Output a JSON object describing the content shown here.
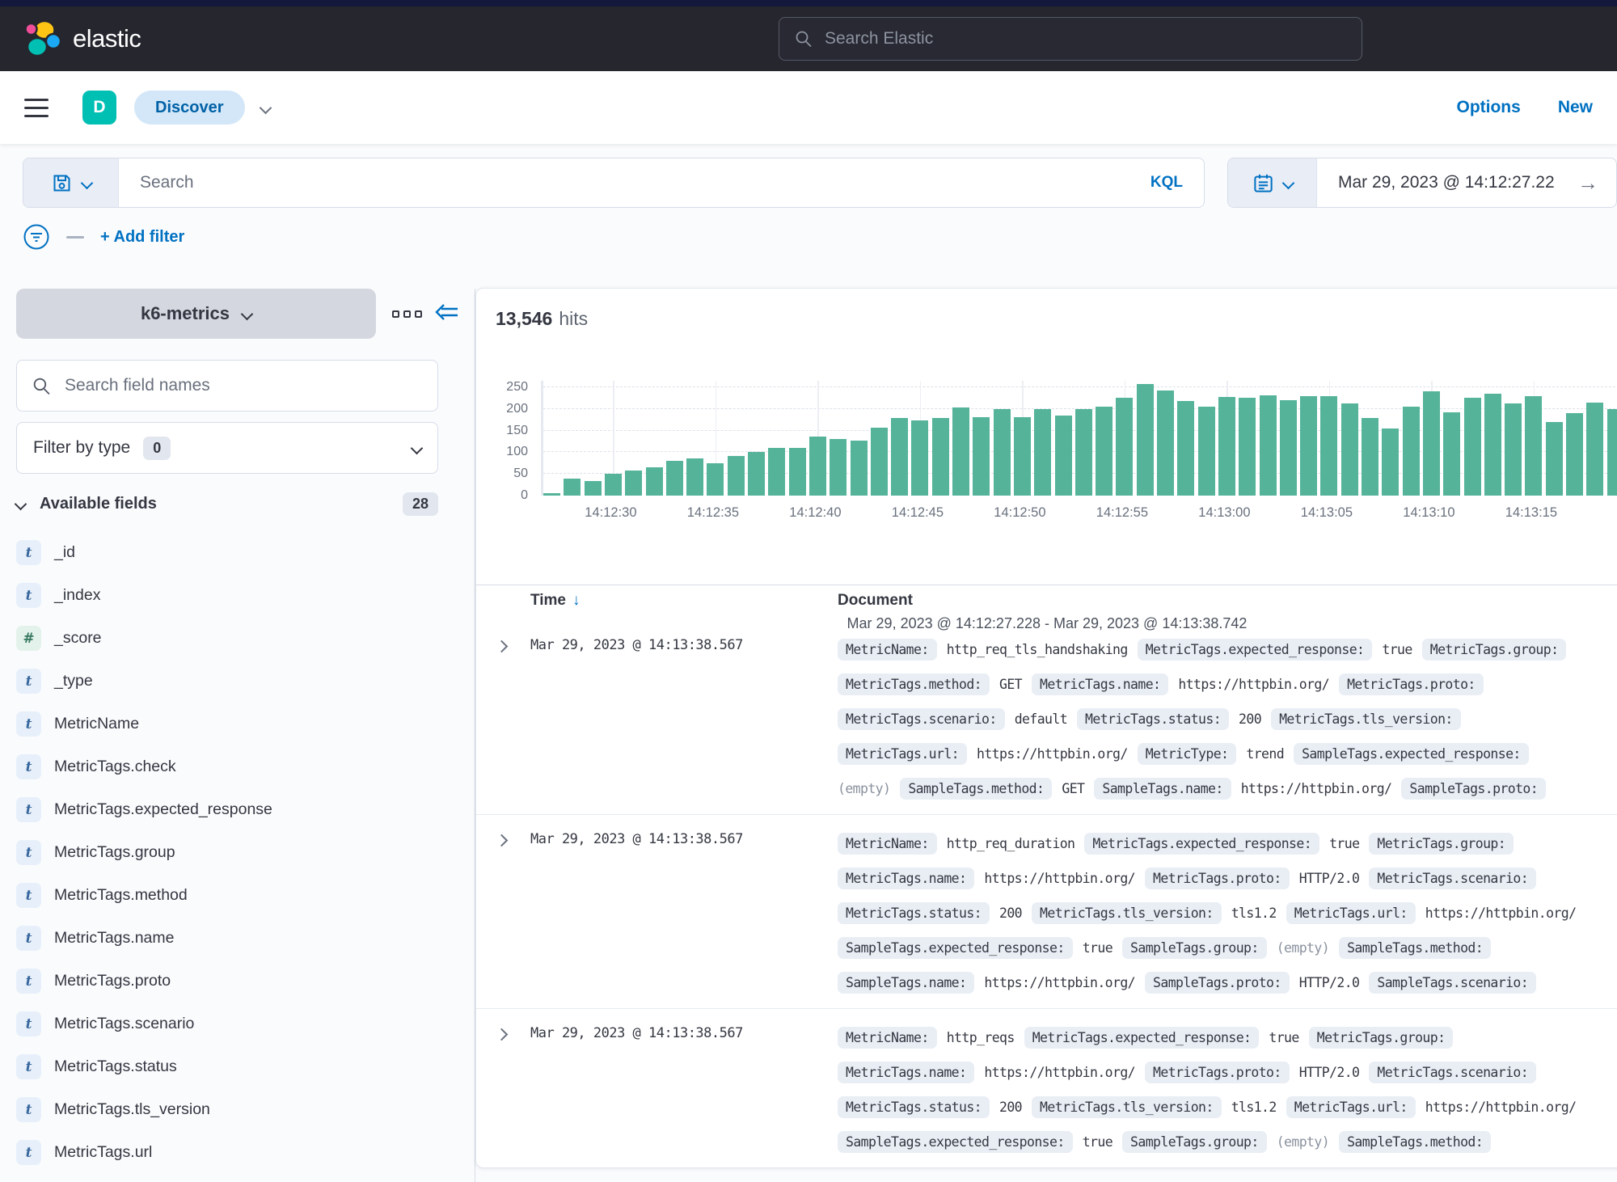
{
  "colors": {
    "accent": "#0071c2",
    "bar": "#54b399",
    "badge_teal": "#00bfb3",
    "header_bg": "#25262e"
  },
  "header": {
    "logo_text": "elastic",
    "search_placeholder": "Search Elastic"
  },
  "nav": {
    "app_initial": "D",
    "breadcrumb": "Discover",
    "options_label": "Options",
    "new_label": "New"
  },
  "query_bar": {
    "search_placeholder": "Search",
    "kql_label": "KQL",
    "date_value": "Mar 29, 2023 @ 14:12:27.22",
    "go_arrow": "→",
    "add_filter_label": "+ Add filter"
  },
  "sidebar": {
    "data_view": "k6-metrics",
    "field_search_placeholder": "Search field names",
    "filter_by_type_label": "Filter by type",
    "filter_by_type_count": "0",
    "available_fields_label": "Available fields",
    "available_fields_count": "28",
    "fields": [
      {
        "type": "t",
        "name": "_id"
      },
      {
        "type": "t",
        "name": "_index"
      },
      {
        "type": "n",
        "name": "_score"
      },
      {
        "type": "t",
        "name": "_type"
      },
      {
        "type": "t",
        "name": "MetricName"
      },
      {
        "type": "t",
        "name": "MetricTags.check"
      },
      {
        "type": "t",
        "name": "MetricTags.expected_response"
      },
      {
        "type": "t",
        "name": "MetricTags.group"
      },
      {
        "type": "t",
        "name": "MetricTags.method"
      },
      {
        "type": "t",
        "name": "MetricTags.name"
      },
      {
        "type": "t",
        "name": "MetricTags.proto"
      },
      {
        "type": "t",
        "name": "MetricTags.scenario"
      },
      {
        "type": "t",
        "name": "MetricTags.status"
      },
      {
        "type": "t",
        "name": "MetricTags.tls_version"
      },
      {
        "type": "t",
        "name": "MetricTags.url"
      }
    ],
    "type_icon_t": "t",
    "type_icon_n": "#"
  },
  "main": {
    "hits_count": "13,546",
    "hits_label": "hits",
    "time_range": "Mar 29, 2023 @ 14:12:27.228 - Mar 29, 2023 @ 14:13:38.742",
    "table": {
      "time_header": "Time",
      "sort_icon": "↓",
      "document_header": "Document",
      "rows": [
        {
          "time": "Mar 29, 2023 @ 14:13:38.567",
          "lines": [
            [
              [
                "k",
                "MetricName:"
              ],
              [
                "v",
                "http_req_tls_handshaking"
              ],
              [
                "k",
                "MetricTags.expected_response:"
              ],
              [
                "v",
                "true"
              ],
              [
                "k",
                "MetricTags.group:"
              ]
            ],
            [
              [
                "k",
                "MetricTags.method:"
              ],
              [
                "v",
                "GET"
              ],
              [
                "k",
                "MetricTags.name:"
              ],
              [
                "v",
                "https://httpbin.org/"
              ],
              [
                "k",
                "MetricTags.proto:"
              ]
            ],
            [
              [
                "k",
                "MetricTags.scenario:"
              ],
              [
                "v",
                "default"
              ],
              [
                "k",
                "MetricTags.status:"
              ],
              [
                "v",
                "200"
              ],
              [
                "k",
                "MetricTags.tls_version:"
              ]
            ],
            [
              [
                "k",
                "MetricTags.url:"
              ],
              [
                "v",
                "https://httpbin.org/"
              ],
              [
                "k",
                "MetricType:"
              ],
              [
                "v",
                "trend"
              ],
              [
                "k",
                "SampleTags.expected_response:"
              ]
            ],
            [
              [
                "e",
                "(empty)"
              ],
              [
                "k",
                "SampleTags.method:"
              ],
              [
                "v",
                "GET"
              ],
              [
                "k",
                "SampleTags.name:"
              ],
              [
                "v",
                "https://httpbin.org/"
              ],
              [
                "k",
                "SampleTags.proto:"
              ]
            ]
          ]
        },
        {
          "time": "Mar 29, 2023 @ 14:13:38.567",
          "lines": [
            [
              [
                "k",
                "MetricName:"
              ],
              [
                "v",
                "http_req_duration"
              ],
              [
                "k",
                "MetricTags.expected_response:"
              ],
              [
                "v",
                "true"
              ],
              [
                "k",
                "MetricTags.group:"
              ]
            ],
            [
              [
                "k",
                "MetricTags.name:"
              ],
              [
                "v",
                "https://httpbin.org/"
              ],
              [
                "k",
                "MetricTags.proto:"
              ],
              [
                "v",
                "HTTP/2.0"
              ],
              [
                "k",
                "MetricTags.scenario:"
              ]
            ],
            [
              [
                "k",
                "MetricTags.status:"
              ],
              [
                "v",
                "200"
              ],
              [
                "k",
                "MetricTags.tls_version:"
              ],
              [
                "v",
                "tls1.2"
              ],
              [
                "k",
                "MetricTags.url:"
              ],
              [
                "v",
                "https://httpbin.org/"
              ]
            ],
            [
              [
                "k",
                "SampleTags.expected_response:"
              ],
              [
                "v",
                "true"
              ],
              [
                "k",
                "SampleTags.group:"
              ],
              [
                "e",
                "(empty)"
              ],
              [
                "k",
                "SampleTags.method:"
              ]
            ],
            [
              [
                "k",
                "SampleTags.name:"
              ],
              [
                "v",
                "https://httpbin.org/"
              ],
              [
                "k",
                "SampleTags.proto:"
              ],
              [
                "v",
                "HTTP/2.0"
              ],
              [
                "k",
                "SampleTags.scenario:"
              ]
            ]
          ]
        },
        {
          "time": "Mar 29, 2023 @ 14:13:38.567",
          "lines": [
            [
              [
                "k",
                "MetricName:"
              ],
              [
                "v",
                "http_reqs"
              ],
              [
                "k",
                "MetricTags.expected_response:"
              ],
              [
                "v",
                "true"
              ],
              [
                "k",
                "MetricTags.group:"
              ]
            ],
            [
              [
                "k",
                "MetricTags.name:"
              ],
              [
                "v",
                "https://httpbin.org/"
              ],
              [
                "k",
                "MetricTags.proto:"
              ],
              [
                "v",
                "HTTP/2.0"
              ],
              [
                "k",
                "MetricTags.scenario:"
              ]
            ],
            [
              [
                "k",
                "MetricTags.status:"
              ],
              [
                "v",
                "200"
              ],
              [
                "k",
                "MetricTags.tls_version:"
              ],
              [
                "v",
                "tls1.2"
              ],
              [
                "k",
                "MetricTags.url:"
              ],
              [
                "v",
                "https://httpbin.org/"
              ]
            ],
            [
              [
                "k",
                "SampleTags.expected_response:"
              ],
              [
                "v",
                "true"
              ],
              [
                "k",
                "SampleTags.group:"
              ],
              [
                "e",
                "(empty)"
              ],
              [
                "k",
                "SampleTags.method:"
              ]
            ]
          ]
        }
      ]
    }
  },
  "chart_data": {
    "type": "bar",
    "title": "13,546 hits",
    "xlabel": "",
    "ylabel": "",
    "ylim": [
      0,
      265
    ],
    "y_ticks": [
      0,
      50,
      100,
      150,
      200,
      250
    ],
    "bucket_seconds": 1,
    "x_start": "14:12:27",
    "values": [
      5,
      40,
      33,
      50,
      57,
      66,
      81,
      85,
      75,
      92,
      100,
      110,
      110,
      137,
      131,
      127,
      157,
      180,
      174,
      180,
      203,
      181,
      200,
      181,
      200,
      185,
      200,
      205,
      225,
      258,
      242,
      218,
      205,
      228,
      225,
      232,
      220,
      230,
      230,
      212,
      180,
      155,
      205,
      240,
      192,
      225,
      235,
      212,
      230,
      170,
      190,
      215,
      200
    ],
    "tick_indices": [
      3,
      8,
      13,
      18,
      23,
      28,
      33,
      38,
      43,
      48
    ],
    "tick_labels": [
      "14:12:30",
      "14:12:35",
      "14:12:40",
      "14:12:45",
      "14:12:50",
      "14:12:55",
      "14:13:00",
      "14:13:05",
      "14:13:10",
      "14:13:15"
    ],
    "grid": true,
    "legend": false,
    "time_range_label": "Mar 29, 2023 @ 14:12:27.228 - Mar 29, 2023 @ 14:13:38.742"
  }
}
